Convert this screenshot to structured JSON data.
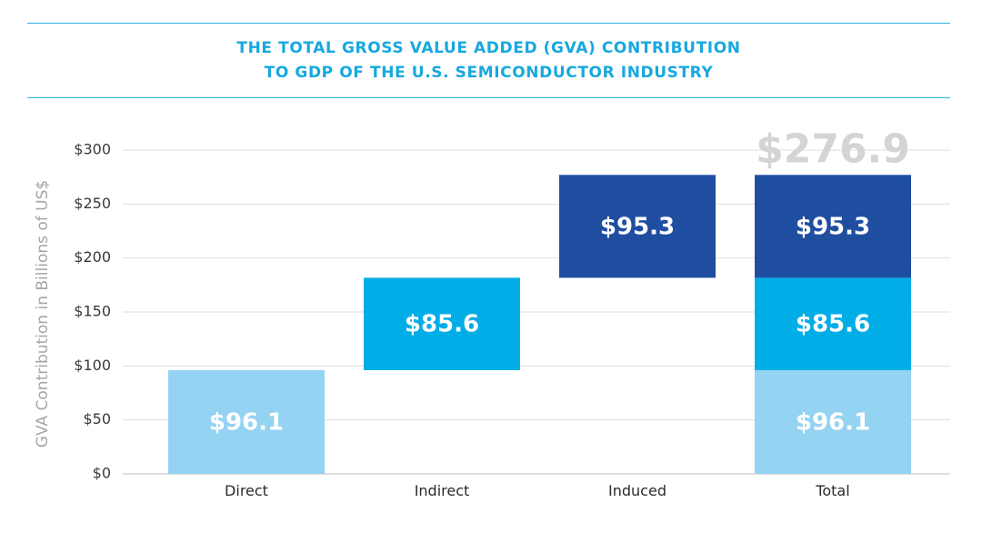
{
  "chart_data": {
    "type": "bar",
    "subtype": "waterfall-stacked",
    "title_lines": [
      "THE TOTAL GROSS VALUE ADDED (GVA) CONTRIBUTION",
      "TO GDP OF THE U.S. SEMICONDUCTOR INDUSTRY"
    ],
    "ylabel": "GVA Contribution in Billions of US$",
    "xlabel": "",
    "ylim": [
      0,
      300
    ],
    "yticks": [
      {
        "value": 0,
        "label": "$0"
      },
      {
        "value": 50,
        "label": "$50"
      },
      {
        "value": 100,
        "label": "$100"
      },
      {
        "value": 150,
        "label": "$150"
      },
      {
        "value": 200,
        "label": "$200"
      },
      {
        "value": 250,
        "label": "$250"
      },
      {
        "value": 300,
        "label": "$300"
      }
    ],
    "grid": true,
    "categories": [
      "Direct",
      "Indirect",
      "Induced",
      "Total"
    ],
    "series": [
      {
        "name": "Direct",
        "color": "#94d3f2",
        "value": 96.1,
        "label": "$96.1"
      },
      {
        "name": "Indirect",
        "color": "#00ade6",
        "value": 85.6,
        "label": "$85.6"
      },
      {
        "name": "Induced",
        "color": "#1f4ea1",
        "value": 95.3,
        "label": "$95.3"
      }
    ],
    "total": {
      "value": 276.9,
      "label": "$276.9",
      "color": "#d4d4d4"
    },
    "rule_color": "#29b6e6",
    "title_color": "#17a8e0"
  }
}
